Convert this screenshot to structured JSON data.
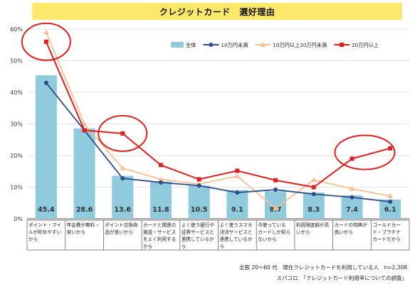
{
  "chart_data": {
    "type": "bar",
    "title": "クレジットカード　選好理由",
    "categories": [
      [
        "ポイント・マイ",
        "ルが貯めやすい",
        "から"
      ],
      [
        "年会費が無料・",
        "安いから"
      ],
      [
        "ポイント交換商",
        "品が良いから"
      ],
      [
        "カードと関連の",
        "施設・サービス",
        "をよく利用する",
        "から"
      ],
      [
        "よく使う銀行や",
        "証券サービスと",
        "連携しているか",
        "ら"
      ],
      [
        "よく使うスマホ",
        "決済サービスと",
        "連携しているか",
        "ら"
      ],
      [
        "今使っている",
        "カードしか知ら",
        "ないから"
      ],
      [
        "利用限度額が高",
        "いから"
      ],
      [
        "カードの特典が",
        "良いから"
      ],
      [
        "ゴールドカー",
        "ド・プラチナ",
        "カードだから"
      ]
    ],
    "ylim": [
      0,
      60
    ],
    "yticks": [
      "0%",
      "10%",
      "20%",
      "30%",
      "40%",
      "50%",
      "60%"
    ],
    "legend_position": "top-right",
    "series": [
      {
        "name": "全体",
        "kind": "bar",
        "color": "#8FCBDC",
        "values": [
          45.4,
          28.6,
          13.6,
          11.8,
          10.5,
          9.1,
          8.7,
          8.3,
          7.4,
          6.1
        ],
        "labels": [
          "45.4",
          "28.6",
          "13.6",
          "11.8",
          "10.5",
          "9.1",
          "8.7",
          "8.3",
          "7.4",
          "6.1"
        ]
      },
      {
        "name": "10万円未満",
        "kind": "line",
        "color": "#2E4A8B",
        "marker": "circle",
        "values": [
          43.0,
          28.0,
          12.8,
          11.5,
          10.5,
          8.3,
          9.2,
          7.8,
          6.8,
          5.4
        ]
      },
      {
        "name": "10万円以上20万円未満",
        "kind": "line",
        "color": "#F7BF92",
        "marker": "triangle",
        "values": [
          59.0,
          30.0,
          16.0,
          12.5,
          11.0,
          13.5,
          3.3,
          12.3,
          9.5,
          7.2
        ]
      },
      {
        "name": "20万円以上",
        "kind": "line",
        "color": "#E02020",
        "marker": "square",
        "values": [
          56.0,
          28.0,
          27.0,
          17.0,
          12.5,
          15.2,
          12.2,
          10.0,
          19.0,
          22.3
        ]
      }
    ]
  },
  "footnotes": {
    "line1": "全国 20～60 代　現在クレジットカードを利用している人　n=2,308",
    "line2": "スパコロ　「クレジットカード利用率についての調査」"
  }
}
